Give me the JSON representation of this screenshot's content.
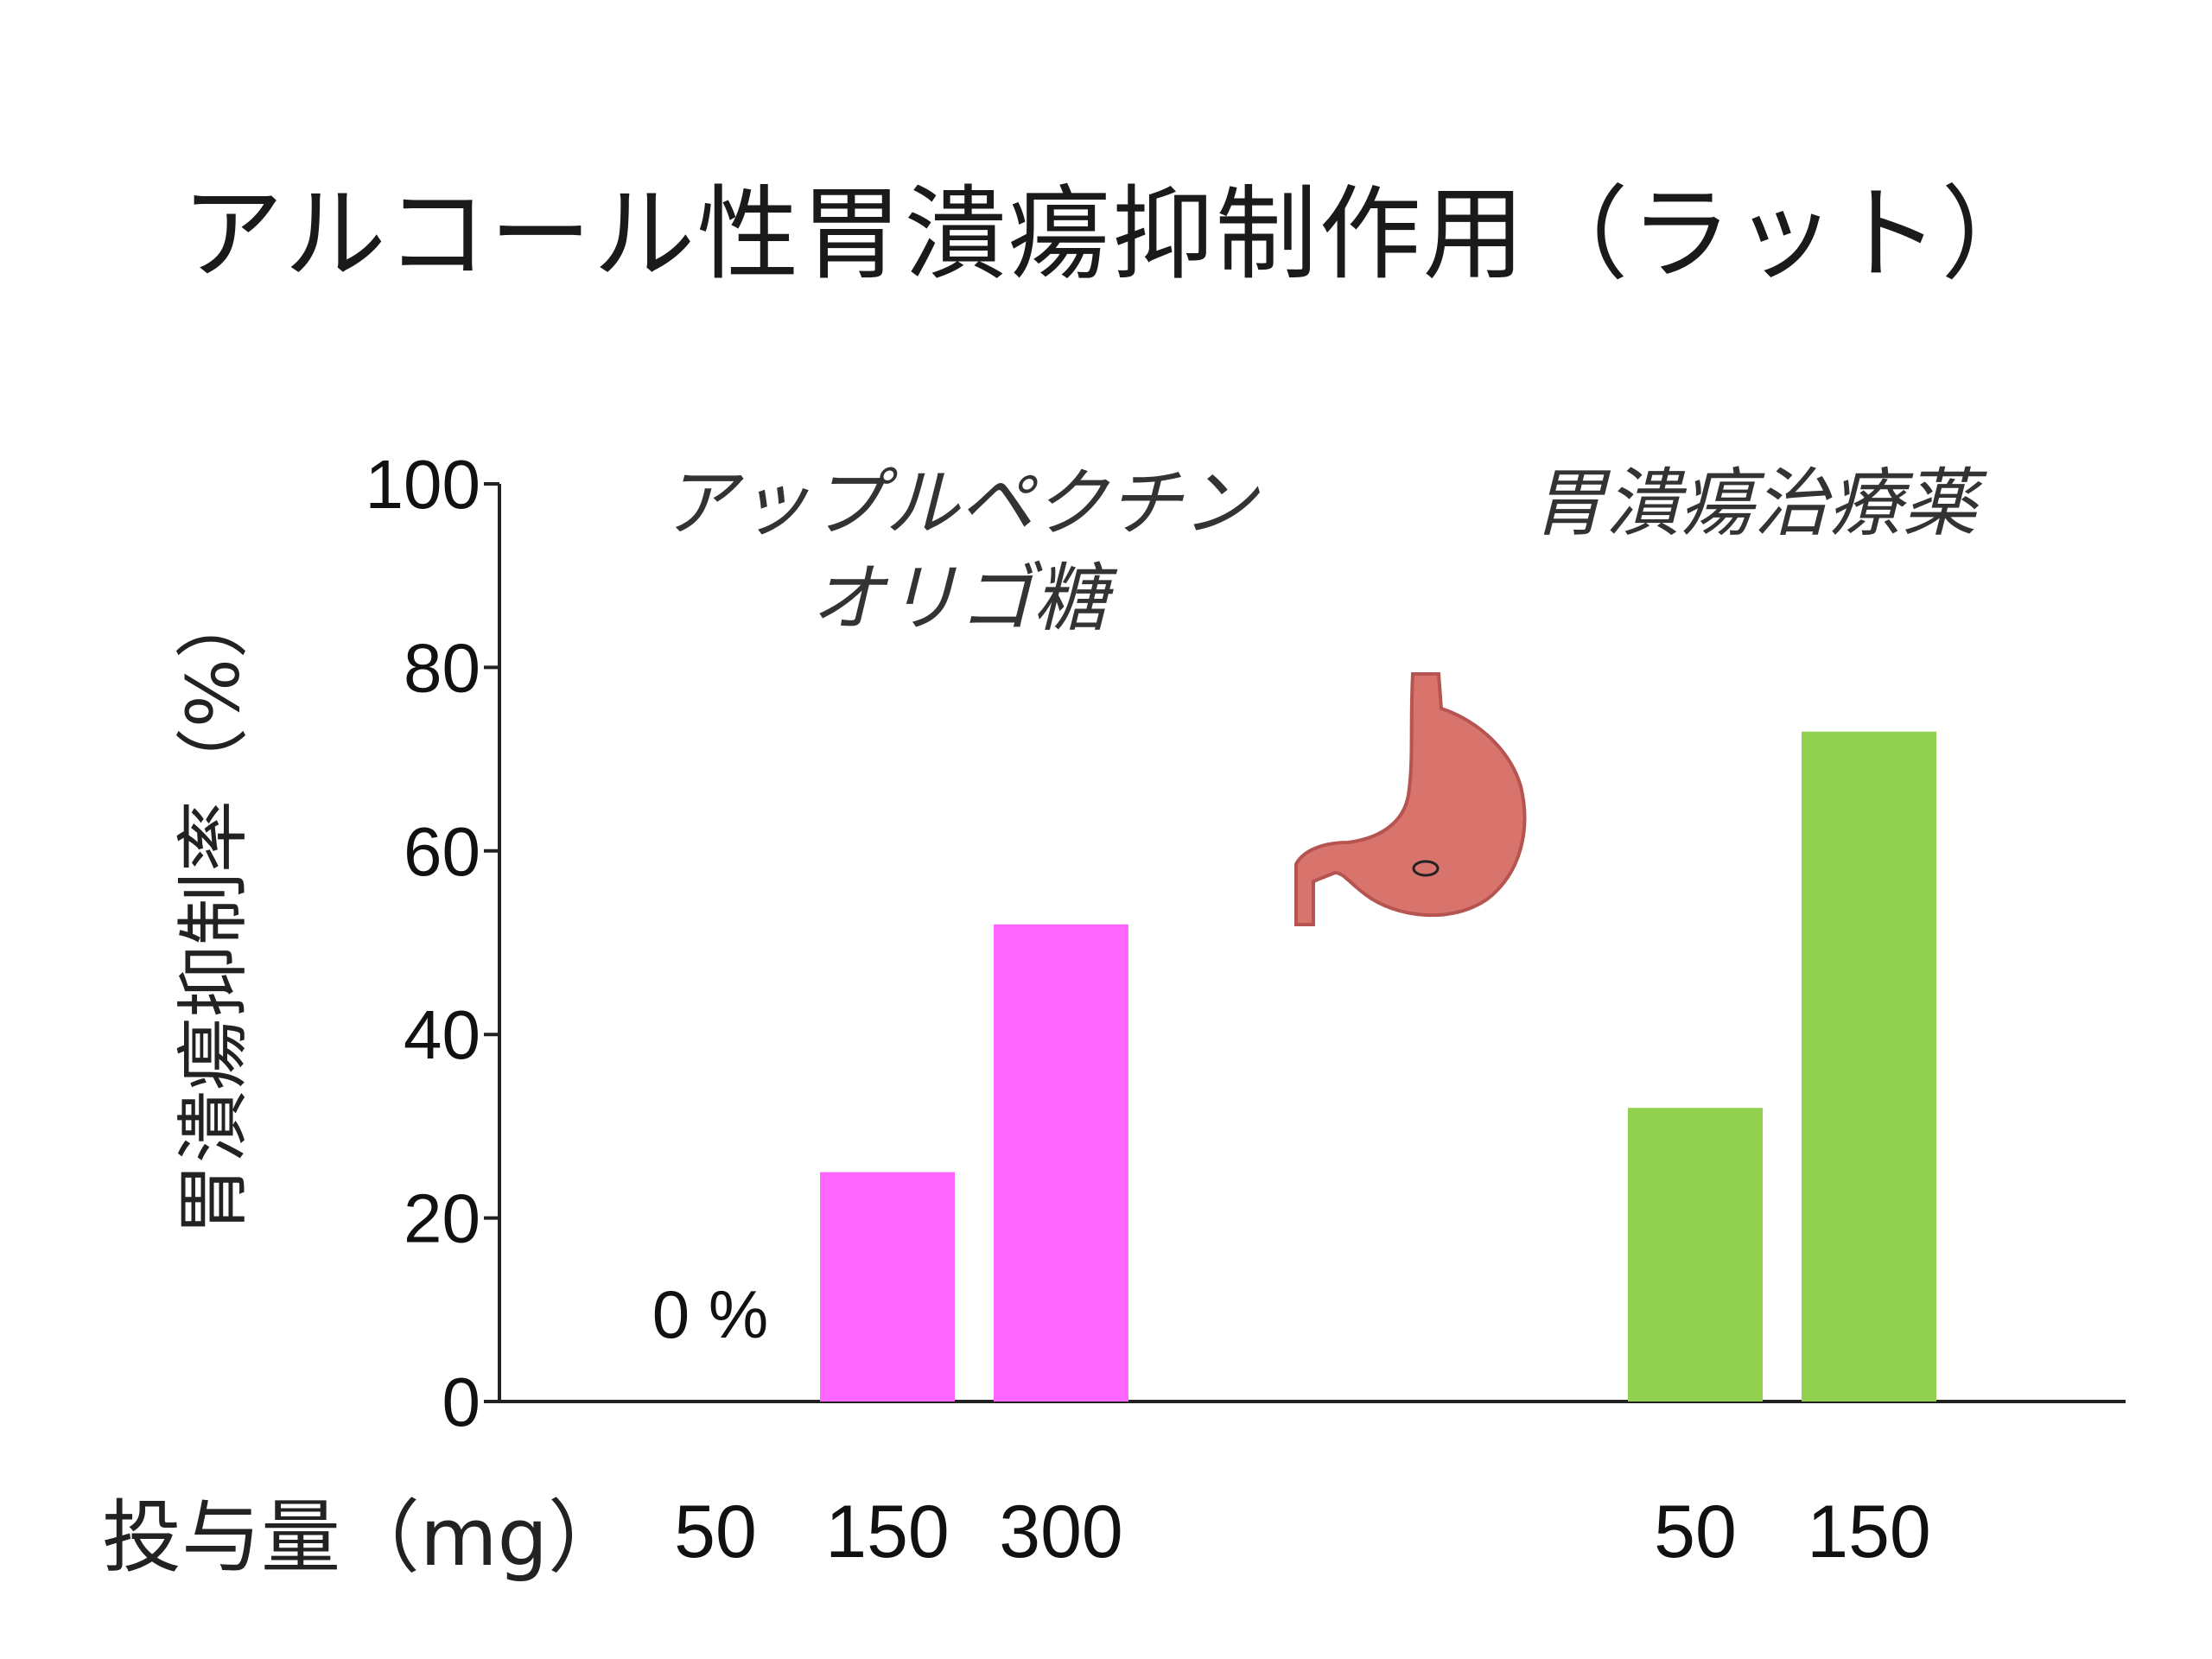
{
  "title": "アルコール性胃潰瘍抑制作用（ラット）",
  "colors": {
    "pectin": "#ff66ff",
    "drug": "#92d050",
    "axis": "#222222"
  },
  "icon": "stomach-illustration",
  "chart_data": {
    "type": "bar",
    "ylabel": "胃潰瘍抑制率（%）",
    "xlabel": "投与量（mg）",
    "ylim": [
      0,
      100
    ],
    "yticks": [
      "0",
      "20",
      "40",
      "60",
      "80",
      "100"
    ],
    "groups": [
      {
        "name": "アップルペクチン\nオリゴ糖",
        "name_line1": "アップルペクチン",
        "name_line2": "オリゴ糖",
        "color": "#ff66ff",
        "doses": [
          "50",
          "150",
          "300"
        ],
        "values": [
          0,
          25,
          52
        ]
      },
      {
        "name": "胃潰瘍治療薬",
        "color": "#92d050",
        "doses": [
          "50",
          "150"
        ],
        "values": [
          32,
          73
        ]
      }
    ],
    "annotations": [
      {
        "text": "0 %"
      }
    ]
  }
}
